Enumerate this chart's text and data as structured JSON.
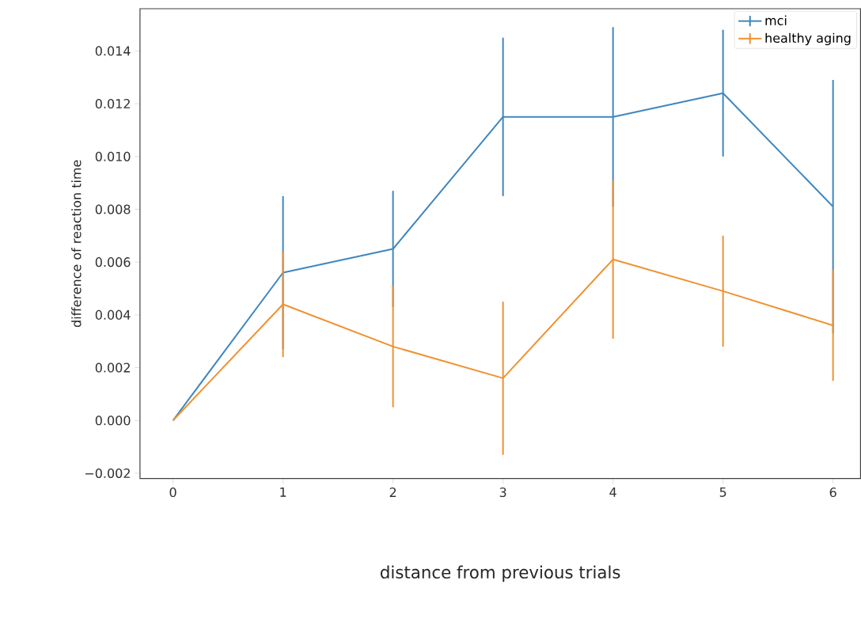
{
  "chart_data": {
    "type": "line",
    "xlabel": "distance from previous trials",
    "ylabel": "difference of reaction time",
    "x": [
      0,
      1,
      2,
      3,
      4,
      5,
      6
    ],
    "series": [
      {
        "name": "mci",
        "color": "#3f86bf",
        "values": [
          0,
          0.0056,
          0.0065,
          0.0115,
          0.0115,
          0.0124,
          0.0081
        ],
        "errors": [
          null,
          0.0029,
          0.0022,
          0.003,
          0.0034,
          0.0024,
          0.0048
        ]
      },
      {
        "name": "healthy aging",
        "color": "#f0912f",
        "values": [
          0,
          0.0044,
          0.0028,
          0.0016,
          0.0061,
          0.0049,
          0.0036
        ],
        "errors": [
          null,
          0.002,
          0.0023,
          0.0029,
          0.003,
          0.0021,
          0.0021
        ]
      }
    ],
    "xlim": [
      -0.3,
      6.25
    ],
    "ylim": [
      -0.0022,
      0.0156
    ],
    "xticks": [
      0,
      1,
      2,
      3,
      4,
      5,
      6
    ],
    "yticks": [
      {
        "value": -0.002,
        "label": "−0.002"
      },
      {
        "value": 0,
        "label": "0.000"
      },
      {
        "value": 0.002,
        "label": "0.002"
      },
      {
        "value": 0.004,
        "label": "0.004"
      },
      {
        "value": 0.006,
        "label": "0.006"
      },
      {
        "value": 0.008,
        "label": "0.008"
      },
      {
        "value": 0.01,
        "label": "0.010"
      },
      {
        "value": 0.012,
        "label": "0.012"
      },
      {
        "value": 0.014,
        "label": "0.014"
      }
    ],
    "legend": "top right",
    "grid": false,
    "marker": "none",
    "line_style": "solid"
  }
}
